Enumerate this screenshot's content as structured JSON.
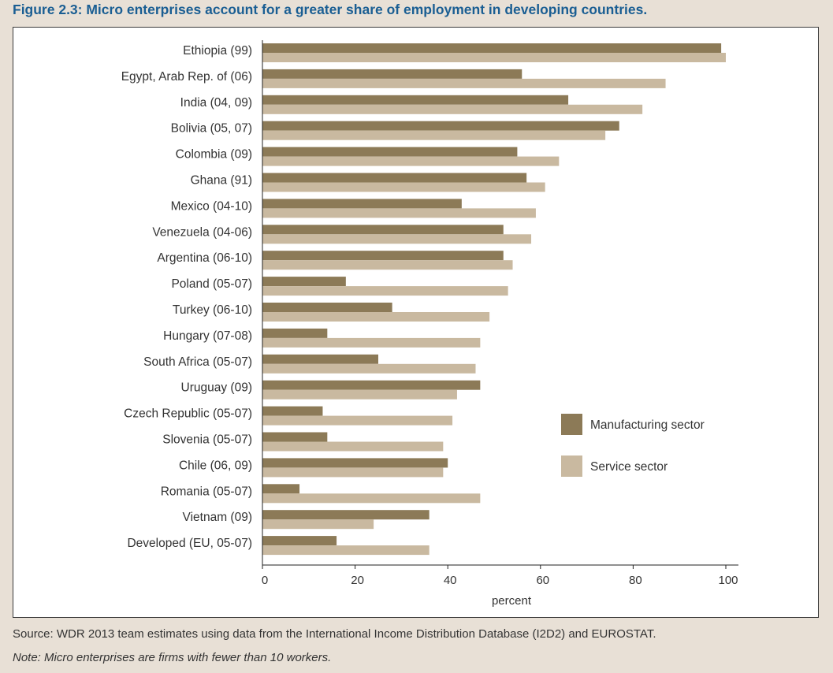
{
  "figure": {
    "title": "Figure 2.3: Micro enterprises account for a greater share of employment in developing countries.",
    "source": "Source: WDR 2013 team estimates using data from the International Income Distribution Database (I2D2) and EUROSTAT.",
    "note": "Note: Micro enterprises are firms with fewer than 10 workers."
  },
  "colors": {
    "manufacturing": "#8c7a57",
    "service": "#c9b9a0",
    "background": "#e8e0d6",
    "title": "#1a5e93"
  },
  "chart_data": {
    "type": "bar",
    "orientation": "horizontal",
    "title": "Figure 2.3: Micro enterprises account for a greater share of employment in developing countries.",
    "xlabel": "percent",
    "ylabel": "",
    "xlim": [
      0,
      100
    ],
    "xticks": [
      0,
      20,
      40,
      60,
      80,
      100
    ],
    "grid": false,
    "legend_position": "right",
    "categories": [
      "Ethiopia (99)",
      "Egypt, Arab Rep. of (06)",
      "India (04, 09)",
      "Bolivia (05, 07)",
      "Colombia (09)",
      "Ghana (91)",
      "Mexico (04-10)",
      "Venezuela (04-06)",
      "Argentina (06-10)",
      "Poland (05-07)",
      "Turkey (06-10)",
      "Hungary (07-08)",
      "South Africa (05-07)",
      "Uruguay (09)",
      "Czech Republic (05-07)",
      "Slovenia (05-07)",
      "Chile (06, 09)",
      "Romania (05-07)",
      "Vietnam (09)",
      "Developed (EU, 05-07)"
    ],
    "series": [
      {
        "name": "Manufacturing sector",
        "values": [
          99,
          56,
          66,
          77,
          55,
          57,
          43,
          52,
          52,
          18,
          28,
          14,
          25,
          47,
          13,
          14,
          40,
          8,
          36,
          16
        ]
      },
      {
        "name": "Service sector",
        "values": [
          100,
          87,
          82,
          74,
          64,
          61,
          59,
          58,
          54,
          53,
          49,
          47,
          46,
          42,
          41,
          39,
          39,
          47,
          24,
          36
        ]
      }
    ]
  }
}
